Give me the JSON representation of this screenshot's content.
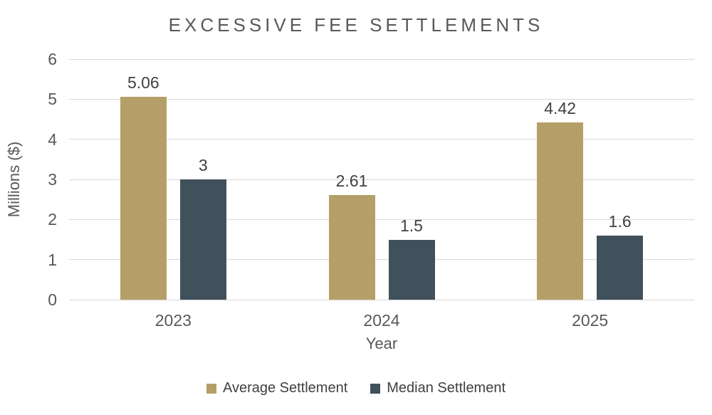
{
  "chart_data": {
    "type": "bar",
    "title": "EXCESSIVE FEE SETTLEMENTS",
    "categories": [
      "2023",
      "2024",
      "2025"
    ],
    "series": [
      {
        "name": "Average Settlement",
        "color": "#B49F68",
        "values": [
          5.06,
          2.61,
          4.42
        ],
        "labels": [
          "5.06",
          "2.61",
          "4.42"
        ]
      },
      {
        "name": "Median Settlement",
        "color": "#40515C",
        "values": [
          3,
          1.5,
          1.6
        ],
        "labels": [
          "3",
          "1.5",
          "1.6"
        ]
      }
    ],
    "xlabel": "Year",
    "ylabel": "Millions ($)",
    "ylim": [
      0,
      6
    ],
    "yticks": [
      0,
      1,
      2,
      3,
      4,
      5,
      6
    ],
    "grid": true,
    "legend_position": "bottom",
    "colors": {
      "background": "#FFFFFF",
      "title_text": "#595959",
      "axis_text": "#595959",
      "data_label_text": "#404040",
      "legend_text": "#404040",
      "gridline": "#D9D9D9"
    }
  }
}
